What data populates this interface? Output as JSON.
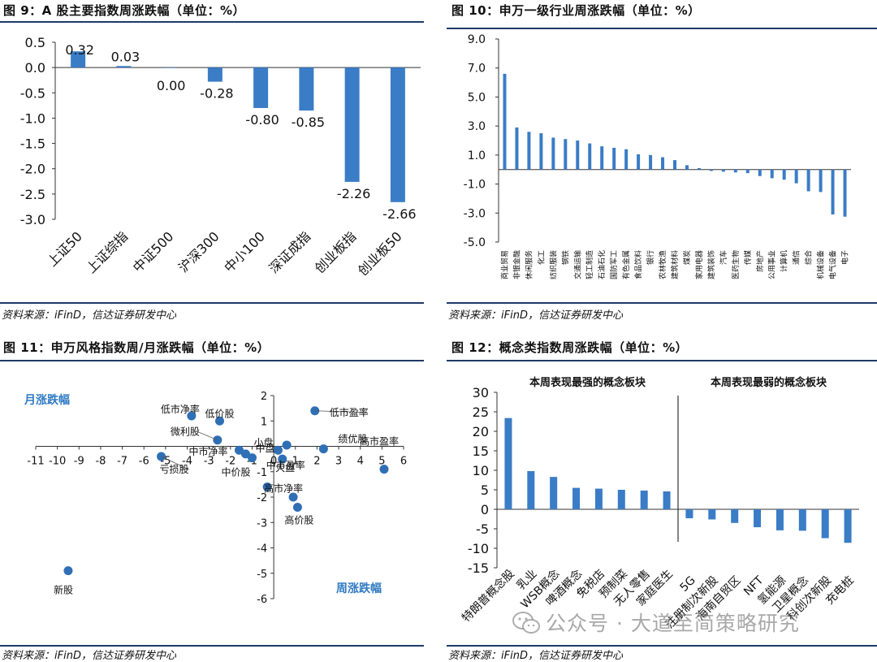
{
  "colors": {
    "bar": "#3a7cc6",
    "dot": "#2f6fb5",
    "rule": "#1f3a68",
    "accent_text": "#2f7ac3"
  },
  "panels": {
    "fig9": {
      "title": "图 9：A 股主要指数周涨跌幅（单位：%）",
      "source": "资料来源：iFinD，信达证券研发中心"
    },
    "fig10": {
      "title": "图 10：申万一级行业周涨跌幅（单位：%）",
      "source": "资料来源：iFinD，信达证券研发中心"
    },
    "fig11": {
      "title": "图 11：申万风格指数周/月涨跌幅（单位：%）",
      "source": "资料来源：iFinD，信达证券研发中心"
    },
    "fig12": {
      "title": "图 12：概念类指数周涨跌幅（单位：%）",
      "source": "资料来源：iFinD，信达证券研发中心"
    }
  },
  "watermark": {
    "text": "公众号 · 大道至简策略研究",
    "icon": "wechat-icon"
  },
  "chart_data": [
    {
      "id": "fig9",
      "type": "bar",
      "title": "A 股主要指数周涨跌幅（单位：%）",
      "categories": [
        "上证50",
        "上证综指",
        "中证500",
        "沪深300",
        "中小100",
        "深证成指",
        "创业板指",
        "创业板50"
      ],
      "values": [
        0.32,
        0.03,
        0.0,
        -0.28,
        -0.8,
        -0.85,
        -2.26,
        -2.66
      ],
      "data_labels": [
        "0.32",
        "0.03",
        "0.00",
        "-0.28",
        "-0.80",
        "-0.85",
        "-2.26",
        "-2.66"
      ],
      "ylim": [
        -3.0,
        0.5
      ],
      "yticks": [
        "0.5",
        "0.0",
        "-0.5",
        "-1.0",
        "-1.5",
        "-2.0",
        "-2.5",
        "-3.0"
      ],
      "xlabel": "",
      "ylabel": ""
    },
    {
      "id": "fig10",
      "type": "bar",
      "title": "申万一级行业周涨跌幅（单位：%）",
      "categories": [
        "商业贸易",
        "非银金融",
        "休闲服务",
        "化工",
        "纺织服装",
        "钢铁",
        "交通运输",
        "轻工制造",
        "石油石化",
        "国防军工",
        "有色金属",
        "食品饮料",
        "银行",
        "农林牧渔",
        "建筑材料",
        "煤炭",
        "家用电器",
        "建筑装饰",
        "汽车",
        "医药生物",
        "传媒",
        "房地产",
        "公用事业",
        "计算机",
        "通信",
        "综合",
        "机械设备",
        "电气设备",
        "电子"
      ],
      "values": [
        6.6,
        2.9,
        2.6,
        2.5,
        2.2,
        2.1,
        2.0,
        1.8,
        1.6,
        1.5,
        1.4,
        1.05,
        1.0,
        0.85,
        0.65,
        0.3,
        0.1,
        -0.1,
        -0.15,
        -0.2,
        -0.25,
        -0.45,
        -0.6,
        -0.7,
        -0.95,
        -1.5,
        -1.55,
        -3.1,
        -3.25
      ],
      "ylim": [
        -5.0,
        9.0
      ],
      "yticks": [
        "9.0",
        "7.0",
        "5.0",
        "3.0",
        "1.0",
        "-1.0",
        "-3.0",
        "-5.0"
      ],
      "xlabel": "",
      "ylabel": ""
    },
    {
      "id": "fig11",
      "type": "scatter",
      "title": "申万风格指数周/月涨跌幅（单位：%）",
      "xlabel": "周涨跌幅",
      "ylabel": "月涨跌幅",
      "xlim": [
        -11,
        6
      ],
      "ylim": [
        -6,
        2
      ],
      "xticks": [
        "-11",
        "-10",
        "-9",
        "-8",
        "-7",
        "-6",
        "-5",
        "-4",
        "-3",
        "-2",
        "-1",
        "0",
        "1",
        "2",
        "3",
        "4",
        "5",
        "6"
      ],
      "yticks": [
        "2",
        "1",
        "0",
        "-1",
        "-2",
        "-3",
        "-4",
        "-5",
        "-6"
      ],
      "points": [
        {
          "label": "低市净率",
          "x": -3.8,
          "y": 1.2
        },
        {
          "label": "低价股",
          "x": -2.5,
          "y": 1.0
        },
        {
          "label": "微利股",
          "x": -2.6,
          "y": 0.25
        },
        {
          "label": "中市净率",
          "x": -1.6,
          "y": -0.15
        },
        {
          "label": "小盘",
          "x": -1.3,
          "y": -0.3
        },
        {
          "label": "中价股",
          "x": -1.0,
          "y": -0.45
        },
        {
          "label": "中盘",
          "x": 0.2,
          "y": -0.15
        },
        {
          "label": "大盘",
          "x": 0.6,
          "y": 0.05
        },
        {
          "label": "中市盈率",
          "x": 0.4,
          "y": -0.5
        },
        {
          "label": "亏损股",
          "x": -5.2,
          "y": -0.4
        },
        {
          "label": "低市盈率",
          "x": 1.9,
          "y": 1.4
        },
        {
          "label": "绩优股",
          "x": 2.3,
          "y": -0.1
        },
        {
          "label": "高市盈率",
          "x": 5.1,
          "y": -0.9
        },
        {
          "label": "高市净率",
          "x": -0.3,
          "y": -1.6
        },
        {
          "label": "",
          "x": 0.9,
          "y": -2.0
        },
        {
          "label": "高价股",
          "x": 1.1,
          "y": -2.4
        },
        {
          "label": "新股",
          "x": -9.5,
          "y": -4.9
        }
      ]
    },
    {
      "id": "fig12",
      "type": "bar",
      "title": "概念类指数周涨跌幅（单位：%）",
      "groups": [
        "本周表现最强的概念板块",
        "本周表现最弱的概念板块"
      ],
      "categories": [
        "特朗普概念股",
        "乳业",
        "WSB概念",
        "啤酒概念",
        "免税店",
        "预制菜",
        "无人零售",
        "家庭医生",
        "5G",
        "注册制次新股",
        "海南自贸区",
        "NFT",
        "氢能源",
        "卫星概念",
        "科创次新股",
        "充电桩"
      ],
      "values": [
        23.4,
        9.8,
        8.3,
        5.5,
        5.3,
        5.0,
        4.8,
        4.6,
        -2.3,
        -2.6,
        -3.5,
        -4.6,
        -5.4,
        -5.5,
        -7.4,
        -8.6
      ],
      "ylim": [
        -15,
        30
      ],
      "yticks": [
        "30",
        "25",
        "20",
        "15",
        "10",
        "5",
        "0",
        "-5",
        "-10",
        "-15"
      ],
      "xlabel": "",
      "ylabel": ""
    }
  ]
}
